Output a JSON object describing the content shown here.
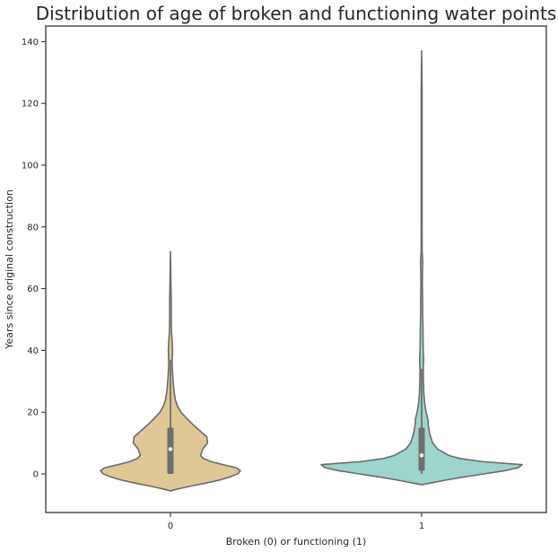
{
  "chart_data": {
    "type": "violin",
    "title": "Distribution of age of broken and functioning water points",
    "xlabel": "Broken (0) or functioning (1)",
    "ylabel": "Years since original construction",
    "categories": [
      "0",
      "1"
    ],
    "ylim": [
      -12,
      146
    ],
    "yticks": [
      0,
      20,
      40,
      60,
      80,
      100,
      120,
      140
    ],
    "grid": false,
    "colors": {
      "0": "#dfc895",
      "1": "#9dd4cb",
      "outline": "#6b6b6b",
      "box": "#6e6e6e"
    },
    "violins": [
      {
        "category": "0",
        "min": -5.5,
        "max": 72,
        "q1": 0,
        "median": 8,
        "q3": 15,
        "whisker_low": 0,
        "whisker_high": 37,
        "density": [
          [
            -5.5,
            0.0
          ],
          [
            -5,
            0.08
          ],
          [
            -4,
            0.28
          ],
          [
            -3,
            0.5
          ],
          [
            -2,
            0.7
          ],
          [
            -1,
            0.85
          ],
          [
            0,
            0.96
          ],
          [
            1,
            1.0
          ],
          [
            2,
            0.94
          ],
          [
            3,
            0.75
          ],
          [
            4,
            0.58
          ],
          [
            5,
            0.47
          ],
          [
            6,
            0.43
          ],
          [
            8,
            0.46
          ],
          [
            10,
            0.53
          ],
          [
            12,
            0.52
          ],
          [
            14,
            0.42
          ],
          [
            16,
            0.32
          ],
          [
            18,
            0.23
          ],
          [
            20,
            0.15
          ],
          [
            22,
            0.1
          ],
          [
            24,
            0.07
          ],
          [
            27,
            0.05
          ],
          [
            30,
            0.038
          ],
          [
            33,
            0.03
          ],
          [
            36,
            0.024
          ],
          [
            40,
            0.03
          ],
          [
            43,
            0.024
          ],
          [
            46,
            0.015
          ],
          [
            50,
            0.012
          ],
          [
            55,
            0.012
          ],
          [
            58,
            0.01
          ],
          [
            62,
            0.006
          ],
          [
            67,
            0.004
          ],
          [
            72,
            0.0
          ]
        ]
      },
      {
        "category": "1",
        "min": -3.5,
        "max": 137,
        "q1": 1,
        "median": 6,
        "q3": 15,
        "whisker_low": 0,
        "whisker_high": 34,
        "density": [
          [
            -3.5,
            0.0
          ],
          [
            -3,
            0.08
          ],
          [
            -2,
            0.24
          ],
          [
            -1,
            0.42
          ],
          [
            0,
            0.62
          ],
          [
            1,
            0.82
          ],
          [
            2,
            0.96
          ],
          [
            3,
            1.0
          ],
          [
            4,
            0.6
          ],
          [
            5,
            0.38
          ],
          [
            6,
            0.27
          ],
          [
            8,
            0.16
          ],
          [
            10,
            0.11
          ],
          [
            13,
            0.08
          ],
          [
            16,
            0.065
          ],
          [
            18,
            0.06
          ],
          [
            20,
            0.045
          ],
          [
            23,
            0.03
          ],
          [
            26,
            0.022
          ],
          [
            30,
            0.018
          ],
          [
            34,
            0.016
          ],
          [
            37,
            0.02
          ],
          [
            40,
            0.016
          ],
          [
            44,
            0.014
          ],
          [
            48,
            0.013
          ],
          [
            52,
            0.01
          ],
          [
            55,
            0.01
          ],
          [
            58,
            0.009
          ],
          [
            62,
            0.007
          ],
          [
            66,
            0.009
          ],
          [
            69,
            0.011
          ],
          [
            72,
            0.005
          ],
          [
            80,
            0.004
          ],
          [
            95,
            0.004
          ],
          [
            110,
            0.004
          ],
          [
            125,
            0.004
          ],
          [
            137,
            0.0
          ]
        ]
      }
    ]
  }
}
